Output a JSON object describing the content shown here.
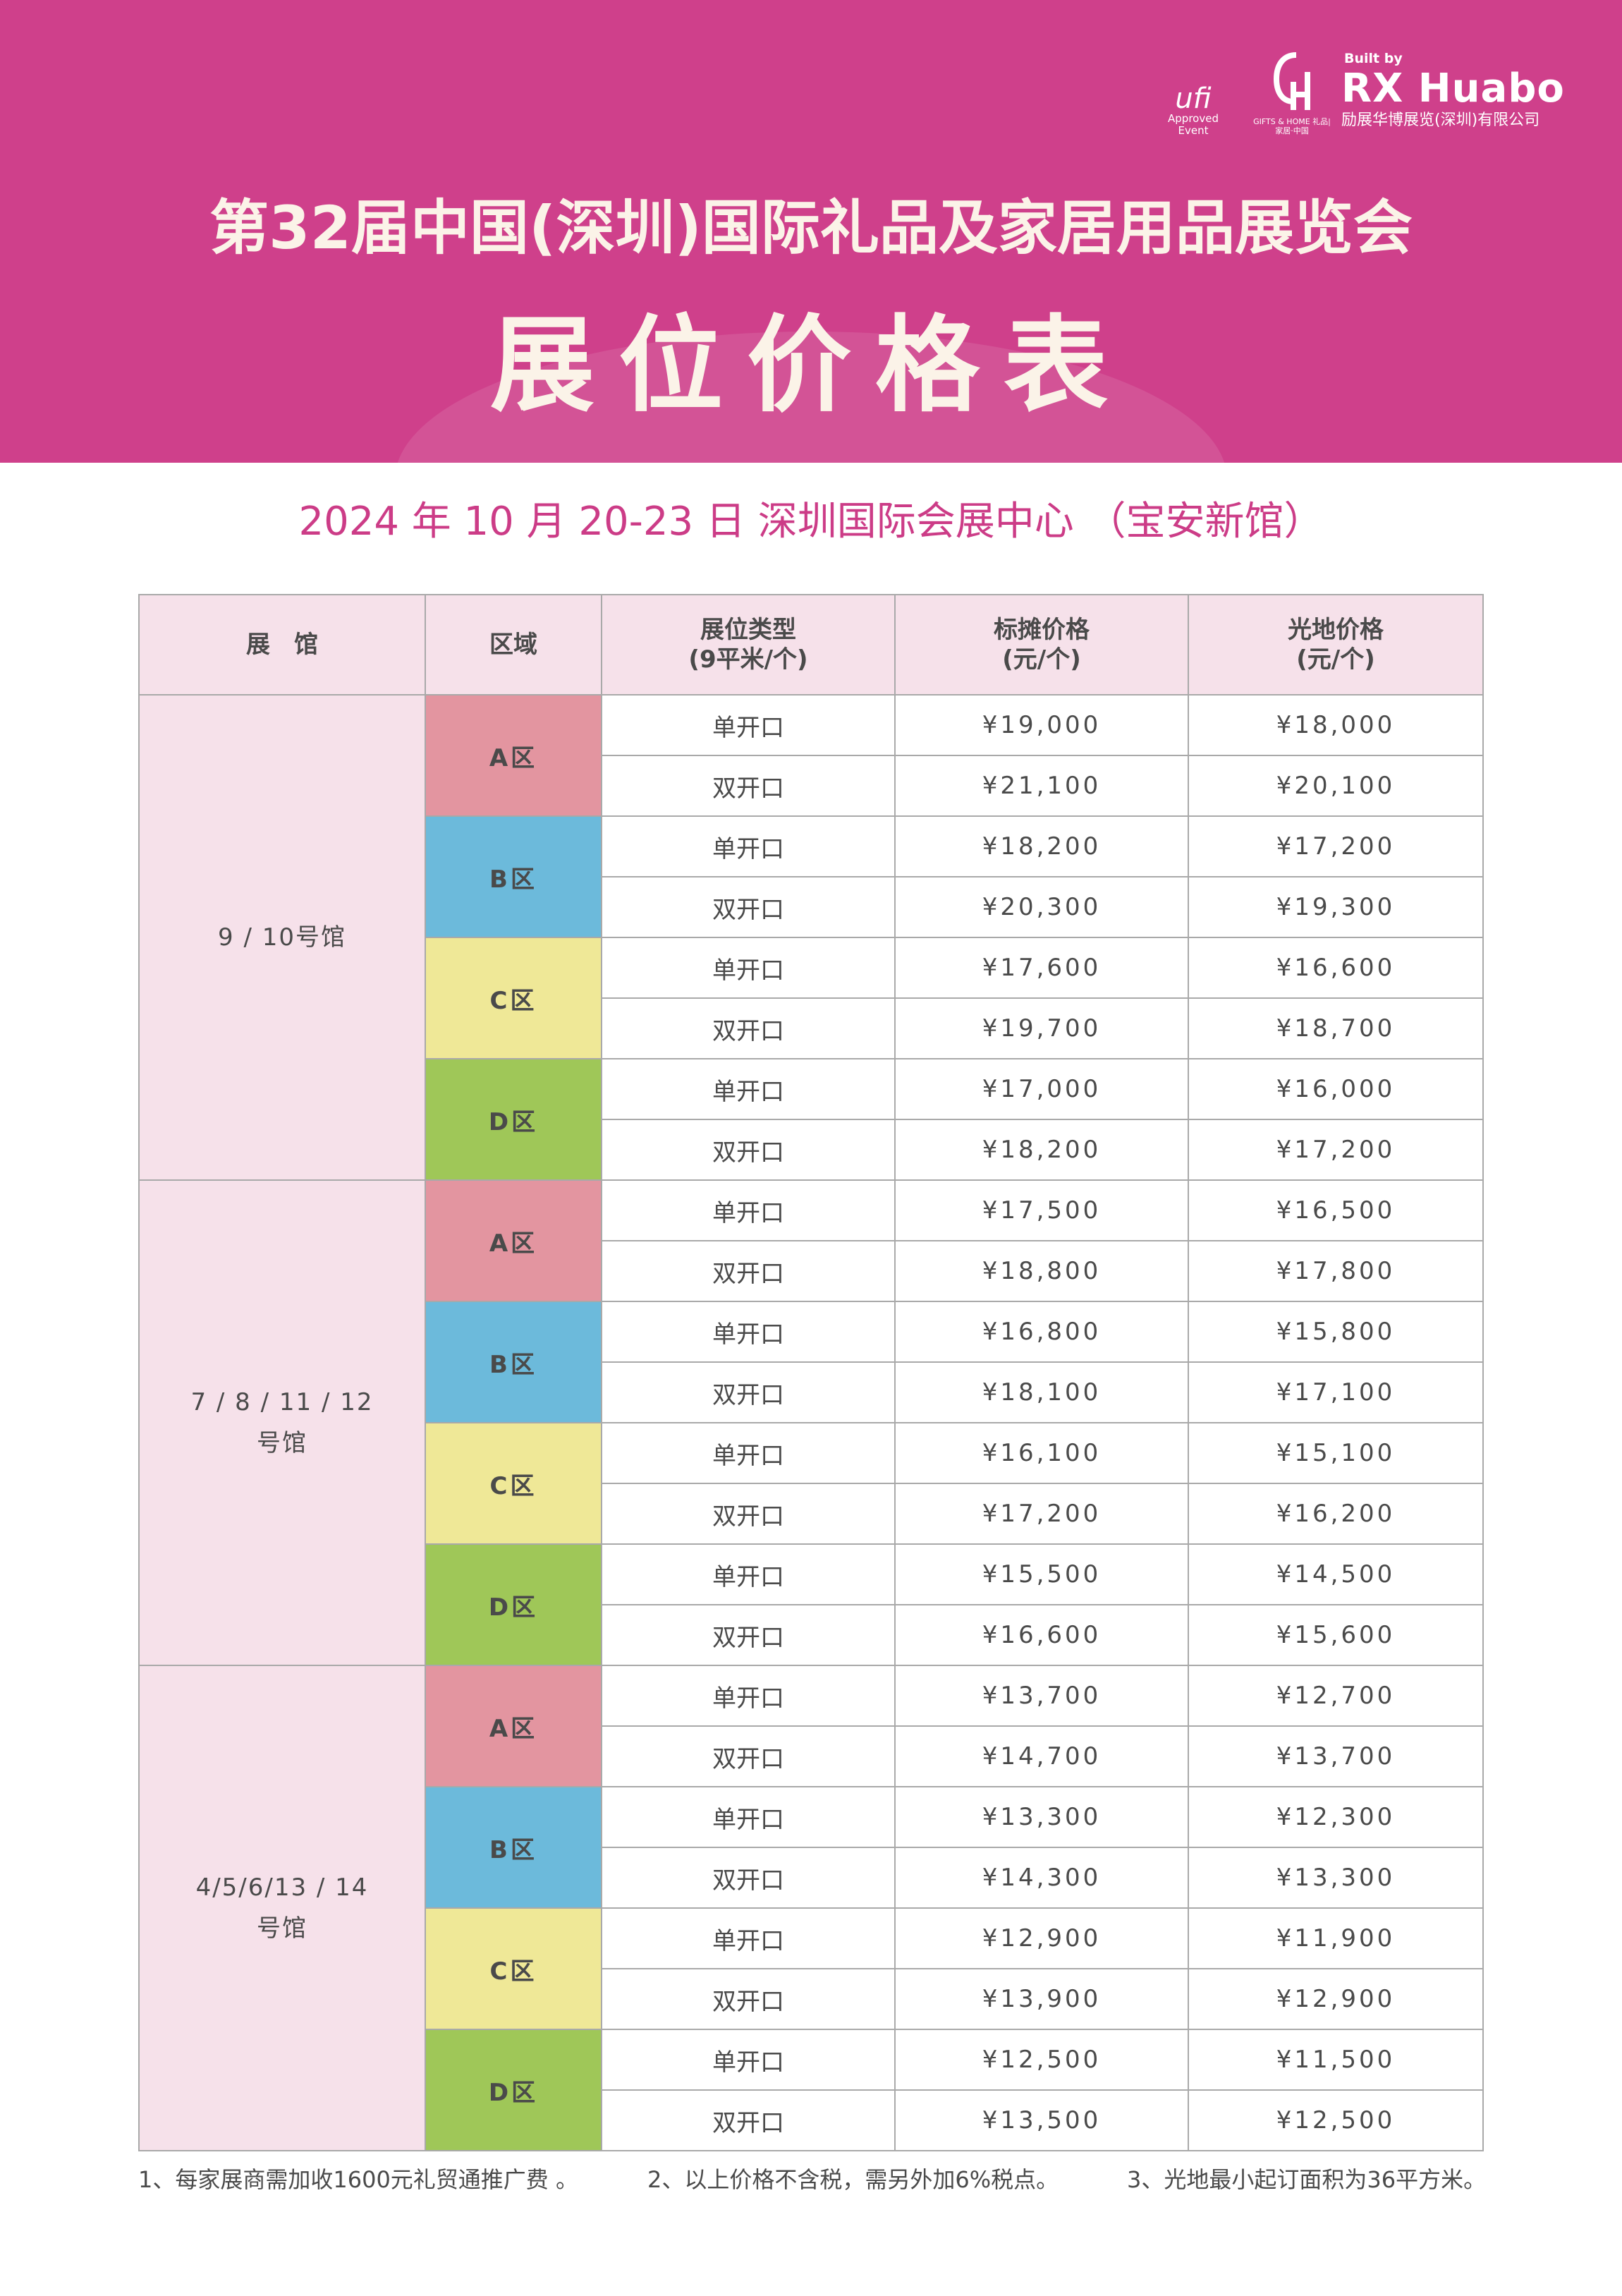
{
  "header": {
    "title": "第32届中国(深圳)国际礼品及家居用品展览会",
    "subtitle": "展位价格表",
    "colors": {
      "banner": "#cf408b",
      "title_text": "#fbf3e8",
      "accent": "#cc3c87"
    },
    "logos": {
      "ufi_mark": "ufi",
      "ufi_sub": "Approved Event",
      "gh_mark": "GH",
      "gh_sub": "GIFTS & HOME 礼品|家居·中国",
      "built_by": "Built by",
      "brand": "RX Huabo",
      "company": "励展华博展览(深圳)有限公司"
    }
  },
  "event_line": "2024 年 10 月 20-23 日   深圳国际会展中心  （宝安新馆）",
  "table": {
    "headers": [
      "展　馆",
      "区域",
      "展位类型\n(9平米/个)",
      "标摊价格\n(元/个)",
      "光地价格\n(元/个)"
    ],
    "zone_colors": {
      "A区": "#e395a0",
      "B区": "#6cbadb",
      "C区": "#efe897",
      "D区": "#9fc758"
    },
    "halls": [
      {
        "name": "9 / 10号馆",
        "zones": [
          {
            "zone": "A区",
            "rows": [
              {
                "type": "单开口",
                "standard": "¥19,000",
                "space": "¥18,000"
              },
              {
                "type": "双开口",
                "standard": "¥21,100",
                "space": "¥20,100"
              }
            ]
          },
          {
            "zone": "B区",
            "rows": [
              {
                "type": "单开口",
                "standard": "¥18,200",
                "space": "¥17,200"
              },
              {
                "type": "双开口",
                "standard": "¥20,300",
                "space": "¥19,300"
              }
            ]
          },
          {
            "zone": "C区",
            "rows": [
              {
                "type": "单开口",
                "standard": "¥17,600",
                "space": "¥16,600"
              },
              {
                "type": "双开口",
                "standard": "¥19,700",
                "space": "¥18,700"
              }
            ]
          },
          {
            "zone": "D区",
            "rows": [
              {
                "type": "单开口",
                "standard": "¥17,000",
                "space": "¥16,000"
              },
              {
                "type": "双开口",
                "standard": "¥18,200",
                "space": "¥17,200"
              }
            ]
          }
        ]
      },
      {
        "name": "7 / 8 / 11 / 12\n号馆",
        "zones": [
          {
            "zone": "A区",
            "rows": [
              {
                "type": "单开口",
                "standard": "¥17,500",
                "space": "¥16,500"
              },
              {
                "type": "双开口",
                "standard": "¥18,800",
                "space": "¥17,800"
              }
            ]
          },
          {
            "zone": "B区",
            "rows": [
              {
                "type": "单开口",
                "standard": "¥16,800",
                "space": "¥15,800"
              },
              {
                "type": "双开口",
                "standard": "¥18,100",
                "space": "¥17,100"
              }
            ]
          },
          {
            "zone": "C区",
            "rows": [
              {
                "type": "单开口",
                "standard": "¥16,100",
                "space": "¥15,100"
              },
              {
                "type": "双开口",
                "standard": "¥17,200",
                "space": "¥16,200"
              }
            ]
          },
          {
            "zone": "D区",
            "rows": [
              {
                "type": "单开口",
                "standard": "¥15,500",
                "space": "¥14,500"
              },
              {
                "type": "双开口",
                "standard": "¥16,600",
                "space": "¥15,600"
              }
            ]
          }
        ]
      },
      {
        "name": "4/5/6/13 / 14\n号馆",
        "zones": [
          {
            "zone": "A区",
            "rows": [
              {
                "type": "单开口",
                "standard": "¥13,700",
                "space": "¥12,700"
              },
              {
                "type": "双开口",
                "standard": "¥14,700",
                "space": "¥13,700"
              }
            ]
          },
          {
            "zone": "B区",
            "rows": [
              {
                "type": "单开口",
                "standard": "¥13,300",
                "space": "¥12,300"
              },
              {
                "type": "双开口",
                "standard": "¥14,300",
                "space": "¥13,300"
              }
            ]
          },
          {
            "zone": "C区",
            "rows": [
              {
                "type": "单开口",
                "standard": "¥12,900",
                "space": "¥11,900"
              },
              {
                "type": "双开口",
                "standard": "¥13,900",
                "space": "¥12,900"
              }
            ]
          },
          {
            "zone": "D区",
            "rows": [
              {
                "type": "单开口",
                "standard": "¥12,500",
                "space": "¥11,500"
              },
              {
                "type": "双开口",
                "standard": "¥13,500",
                "space": "¥12,500"
              }
            ]
          }
        ]
      }
    ]
  },
  "notes": [
    "1、每家展商需加收1600元礼贸通推广费 。",
    "2、以上价格不含税，需另外加6%税点。",
    "3、光地最小起订面积为36平方米。"
  ]
}
